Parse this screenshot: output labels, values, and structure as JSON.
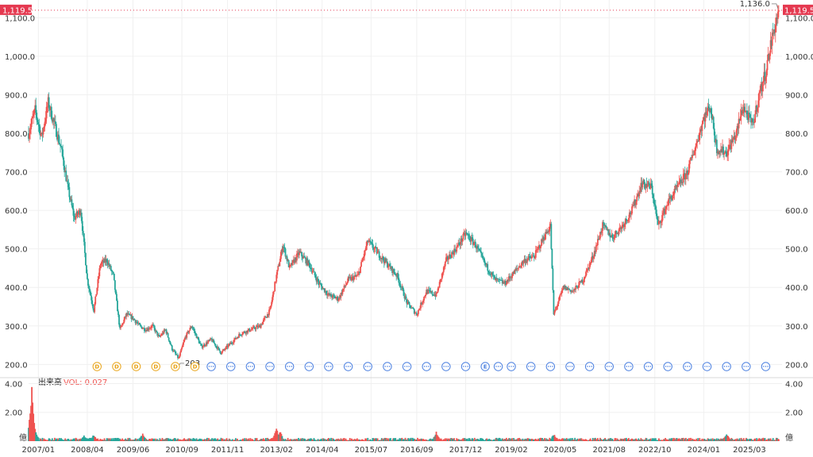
{
  "chart_data": {
    "type": "candlestick",
    "price": {
      "y_ticks": [
        "200.0",
        "300.0",
        "400.0",
        "500.0",
        "600.0",
        "700.0",
        "800.0",
        "900.0",
        "1,000.0",
        "1,100.0"
      ],
      "y_tick_values": [
        200,
        300,
        400,
        500,
        600,
        700,
        800,
        900,
        1000,
        1100
      ],
      "ylim": [
        178,
        1146
      ],
      "current": 1119.5,
      "current_label": "1,119.5",
      "high": 1136.0,
      "high_label": "1,136.0",
      "low": 203,
      "low_label": "203",
      "close_path": [
        [
          "2006-10",
          800
        ],
        [
          "2006-12",
          860
        ],
        [
          "2007-02",
          790
        ],
        [
          "2007-04",
          880
        ],
        [
          "2007-06",
          820
        ],
        [
          "2007-08",
          760
        ],
        [
          "2007-10",
          660
        ],
        [
          "2007-12",
          580
        ],
        [
          "2008-02",
          600
        ],
        [
          "2008-04",
          420
        ],
        [
          "2008-06",
          340
        ],
        [
          "2008-08",
          460
        ],
        [
          "2008-10",
          470
        ],
        [
          "2008-12",
          430
        ],
        [
          "2009-02",
          290
        ],
        [
          "2009-04",
          330
        ],
        [
          "2009-06",
          320
        ],
        [
          "2009-08",
          300
        ],
        [
          "2009-10",
          290
        ],
        [
          "2009-12",
          300
        ],
        [
          "2010-02",
          270
        ],
        [
          "2010-04",
          290
        ],
        [
          "2010-06",
          240
        ],
        [
          "2010-08",
          215
        ],
        [
          "2010-10",
          270
        ],
        [
          "2010-12",
          300
        ],
        [
          "2011-03",
          245
        ],
        [
          "2011-06",
          265
        ],
        [
          "2011-09",
          230
        ],
        [
          "2011-12",
          255
        ],
        [
          "2012-03",
          280
        ],
        [
          "2012-06",
          290
        ],
        [
          "2012-09",
          300
        ],
        [
          "2012-12",
          340
        ],
        [
          "2013-02",
          430
        ],
        [
          "2013-04",
          510
        ],
        [
          "2013-06",
          450
        ],
        [
          "2013-09",
          490
        ],
        [
          "2013-12",
          460
        ],
        [
          "2014-03",
          410
        ],
        [
          "2014-06",
          380
        ],
        [
          "2014-09",
          370
        ],
        [
          "2014-12",
          420
        ],
        [
          "2015-03",
          430
        ],
        [
          "2015-06",
          520
        ],
        [
          "2015-09",
          490
        ],
        [
          "2015-12",
          460
        ],
        [
          "2016-03",
          430
        ],
        [
          "2016-06",
          360
        ],
        [
          "2016-09",
          330
        ],
        [
          "2016-12",
          390
        ],
        [
          "2017-03",
          380
        ],
        [
          "2017-06",
          470
        ],
        [
          "2017-09",
          500
        ],
        [
          "2017-12",
          540
        ],
        [
          "2018-03",
          510
        ],
        [
          "2018-06",
          460
        ],
        [
          "2018-09",
          420
        ],
        [
          "2018-12",
          410
        ],
        [
          "2019-03",
          440
        ],
        [
          "2019-06",
          470
        ],
        [
          "2019-09",
          480
        ],
        [
          "2019-12",
          530
        ],
        [
          "2020-02",
          560
        ],
        [
          "2020-03",
          330
        ],
        [
          "2020-06",
          400
        ],
        [
          "2020-09",
          390
        ],
        [
          "2020-12",
          420
        ],
        [
          "2021-03",
          480
        ],
        [
          "2021-06",
          560
        ],
        [
          "2021-09",
          530
        ],
        [
          "2021-12",
          560
        ],
        [
          "2022-03",
          600
        ],
        [
          "2022-06",
          670
        ],
        [
          "2022-09",
          660
        ],
        [
          "2022-11",
          560
        ],
        [
          "2023-02",
          620
        ],
        [
          "2023-05",
          660
        ],
        [
          "2023-08",
          700
        ],
        [
          "2023-11",
          780
        ],
        [
          "2024-01",
          840
        ],
        [
          "2024-03",
          870
        ],
        [
          "2024-05",
          760
        ],
        [
          "2024-08",
          750
        ],
        [
          "2024-11",
          800
        ],
        [
          "2025-01",
          870
        ],
        [
          "2025-04",
          820
        ],
        [
          "2025-06",
          900
        ],
        [
          "2025-08",
          960
        ],
        [
          "2025-10",
          1050
        ],
        [
          "2025-12",
          1119.5
        ]
      ]
    },
    "volume": {
      "title": "出来高",
      "indicator_label": "VOL: 0.027",
      "y_ticks": [
        "4.00",
        "2.00"
      ],
      "y_tick_values": [
        4,
        2
      ],
      "ylim": [
        0,
        4.3
      ],
      "unit_label": "億",
      "spikes": [
        [
          "2006-11",
          3.8
        ],
        [
          "2006-12",
          0.9
        ],
        [
          "2008-03",
          0.45
        ],
        [
          "2008-06",
          0.5
        ],
        [
          "2009-09",
          0.6
        ],
        [
          "2013-02",
          1.0
        ],
        [
          "2013-03",
          0.8
        ],
        [
          "2017-03",
          0.7
        ],
        [
          "2020-03",
          0.55
        ],
        [
          "2024-08",
          0.6
        ]
      ]
    },
    "x_ticks": [
      "2007/01",
      "2008/04",
      "2009/06",
      "2010/09",
      "2011/11",
      "2013/02",
      "2014/04",
      "2015/07",
      "2016/09",
      "2017/12",
      "2019/02",
      "2020/05",
      "2021/08",
      "2022/10",
      "2024/01",
      "2025/03"
    ],
    "x_tick_dates": [
      "2007-01",
      "2008-04",
      "2009-06",
      "2010-09",
      "2011-11",
      "2013-02",
      "2014-04",
      "2015-07",
      "2016-09",
      "2017-12",
      "2019-02",
      "2020-05",
      "2021-08",
      "2022-10",
      "2024-01",
      "2025-03"
    ],
    "xlim": [
      "2006-10",
      "2026-01"
    ],
    "events": [
      {
        "date": "2008-07",
        "label": "D",
        "kind": "dividend"
      },
      {
        "date": "2009-01",
        "label": "D",
        "kind": "dividend"
      },
      {
        "date": "2009-07",
        "label": "D",
        "kind": "dividend"
      },
      {
        "date": "2010-01",
        "label": "D",
        "kind": "dividend"
      },
      {
        "date": "2010-07",
        "label": "D",
        "kind": "dividend"
      },
      {
        "date": "2011-01",
        "label": "D",
        "kind": "dividend"
      },
      {
        "date": "2011-06",
        "label": "···",
        "kind": "other"
      },
      {
        "date": "2011-12",
        "label": "···",
        "kind": "other"
      },
      {
        "date": "2012-06",
        "label": "···",
        "kind": "other"
      },
      {
        "date": "2012-12",
        "label": "···",
        "kind": "other"
      },
      {
        "date": "2013-06",
        "label": "···",
        "kind": "other"
      },
      {
        "date": "2013-12",
        "label": "···",
        "kind": "other"
      },
      {
        "date": "2014-06",
        "label": "···",
        "kind": "other"
      },
      {
        "date": "2014-12",
        "label": "···",
        "kind": "other"
      },
      {
        "date": "2015-06",
        "label": "···",
        "kind": "other"
      },
      {
        "date": "2015-12",
        "label": "···",
        "kind": "other"
      },
      {
        "date": "2016-06",
        "label": "···",
        "kind": "other"
      },
      {
        "date": "2016-12",
        "label": "···",
        "kind": "other"
      },
      {
        "date": "2017-06",
        "label": "···",
        "kind": "other"
      },
      {
        "date": "2017-12",
        "label": "···",
        "kind": "other"
      },
      {
        "date": "2018-06",
        "label": "E",
        "kind": "earnings"
      },
      {
        "date": "2018-10",
        "label": "···",
        "kind": "other"
      },
      {
        "date": "2019-02",
        "label": "···",
        "kind": "other"
      },
      {
        "date": "2019-08",
        "label": "···",
        "kind": "other"
      },
      {
        "date": "2020-02",
        "label": "···",
        "kind": "other"
      },
      {
        "date": "2020-08",
        "label": "···",
        "kind": "other"
      },
      {
        "date": "2021-02",
        "label": "···",
        "kind": "other"
      },
      {
        "date": "2021-08",
        "label": "···",
        "kind": "other"
      },
      {
        "date": "2022-02",
        "label": "···",
        "kind": "other"
      },
      {
        "date": "2022-08",
        "label": "···",
        "kind": "other"
      },
      {
        "date": "2023-02",
        "label": "···",
        "kind": "other"
      },
      {
        "date": "2023-08",
        "label": "···",
        "kind": "other"
      },
      {
        "date": "2024-02",
        "label": "···",
        "kind": "other"
      },
      {
        "date": "2024-08",
        "label": "···",
        "kind": "other"
      },
      {
        "date": "2025-02",
        "label": "···",
        "kind": "other"
      },
      {
        "date": "2025-08",
        "label": "···",
        "kind": "other"
      }
    ],
    "grid": true
  },
  "colors": {
    "up": "#ef5350",
    "down": "#26a69a",
    "price_tag": "#e53950",
    "dividend": "#e8a317",
    "event": "#4a7fe0",
    "grid": "#f0f0f0",
    "text": "#333333"
  }
}
